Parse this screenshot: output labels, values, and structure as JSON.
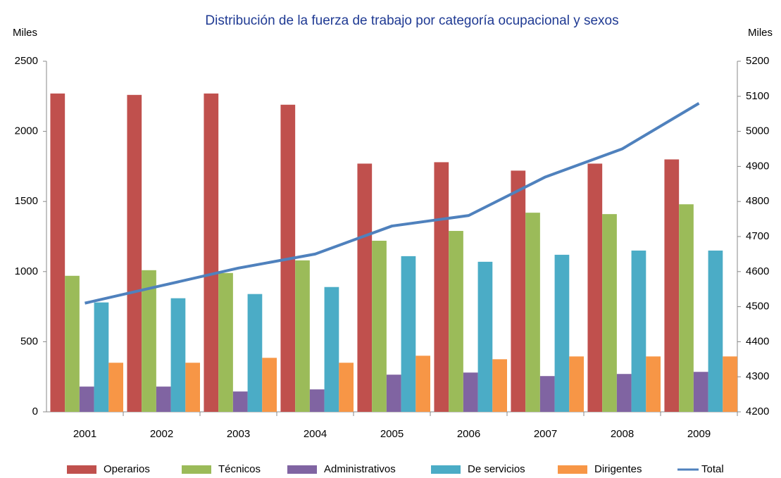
{
  "chart_data": {
    "type": "bar",
    "title": "Distribución de la fuerza de trabajo por categoría ocupacional y sexos",
    "y_label": "Miles",
    "y2_label": "Miles",
    "categories": [
      "2001",
      "2002",
      "2003",
      "2004",
      "2005",
      "2006",
      "2007",
      "2008",
      "2009"
    ],
    "series": [
      {
        "name": "Operarios",
        "color": "#c0504d",
        "values": [
          2270,
          2260,
          2270,
          2190,
          1770,
          1780,
          1720,
          1770,
          1800
        ]
      },
      {
        "name": "Técnicos",
        "color": "#9bbb59",
        "values": [
          970,
          1010,
          990,
          1080,
          1220,
          1290,
          1420,
          1410,
          1480
        ]
      },
      {
        "name": "Administrativos",
        "color": "#8064a2",
        "values": [
          180,
          180,
          145,
          160,
          265,
          280,
          255,
          270,
          285
        ]
      },
      {
        "name": "De servicios",
        "color": "#4bacc6",
        "values": [
          780,
          810,
          840,
          890,
          1110,
          1070,
          1120,
          1150,
          1150
        ]
      },
      {
        "name": "Dirigentes",
        "color": "#f79646",
        "values": [
          350,
          350,
          385,
          350,
          400,
          375,
          395,
          395,
          395
        ]
      },
      {
        "name": "Total",
        "color": "#4f81bd",
        "type": "line",
        "axis": "y2",
        "values": [
          4510,
          4560,
          4610,
          4650,
          4730,
          4760,
          4870,
          4950,
          5080
        ]
      }
    ],
    "ylim": [
      0,
      2500
    ],
    "yticks": [
      0,
      500,
      1000,
      1500,
      2000,
      2500
    ],
    "y2lim": [
      4200,
      5200
    ],
    "y2ticks": [
      4200,
      4300,
      4400,
      4500,
      4600,
      4700,
      4800,
      4900,
      5000,
      5100,
      5200
    ],
    "legend": "bottom"
  }
}
